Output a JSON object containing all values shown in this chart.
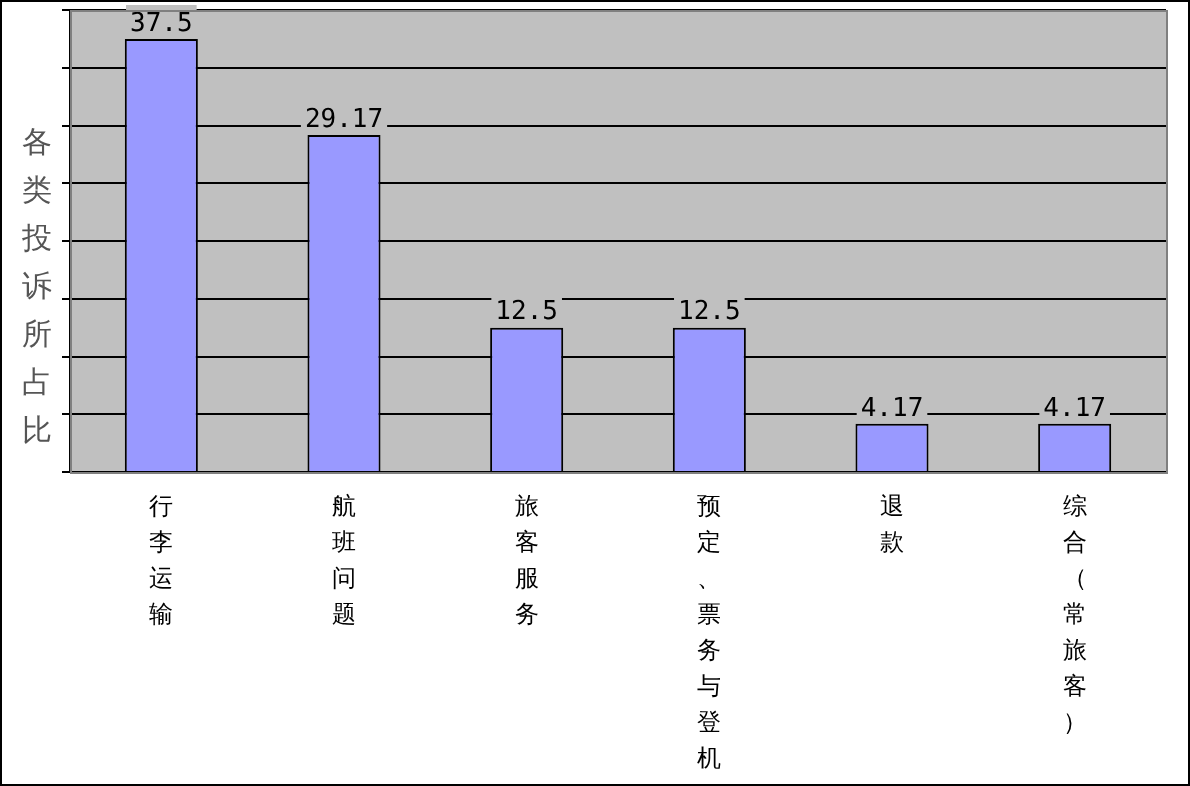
{
  "chart_data": {
    "type": "bar",
    "ylabel": "各类投诉所占比",
    "categories": [
      "行李运输",
      "航班问题",
      "旅客服务",
      "预定、票务与登机",
      "退款",
      "综合（常旅客）"
    ],
    "values": [
      37.5,
      29.17,
      12.5,
      12.5,
      4.17,
      4.17
    ],
    "color": "#9999ff",
    "ylim": [
      0,
      40
    ],
    "yticks": [
      {
        "value": 0,
        "label": null
      },
      {
        "value": 5,
        "label": null
      },
      {
        "value": 10,
        "label": null
      },
      {
        "value": 15,
        "label": null
      },
      {
        "value": 20,
        "label": null
      },
      {
        "value": 25,
        "label": null
      },
      {
        "value": 30,
        "label": null
      },
      {
        "value": 35,
        "label": null
      },
      {
        "value": 40,
        "label": null
      }
    ],
    "tick_labels": "x",
    "grid": "y",
    "data_labels": true
  }
}
